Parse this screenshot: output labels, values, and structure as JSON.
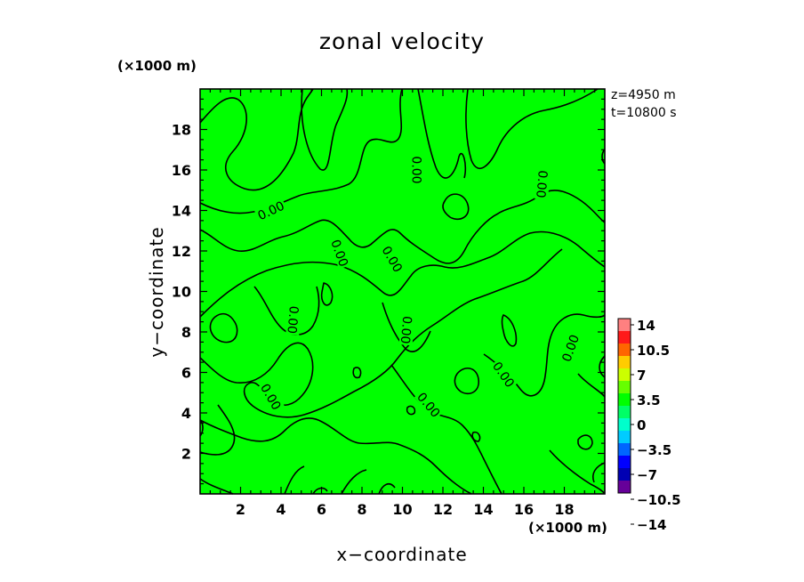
{
  "chart_data": {
    "type": "heatmap",
    "title": "zonal velocity",
    "xlabel": "x−coordinate",
    "ylabel": "y−coordinate",
    "x_unit_label": "(×1000 m)",
    "y_unit_label": "(×1000 m)",
    "annotations": [
      "z=4950 m",
      "t=10800 s"
    ],
    "xlim": [
      0,
      20
    ],
    "ylim": [
      0,
      20
    ],
    "xticks": [
      2,
      4,
      6,
      8,
      10,
      12,
      14,
      16,
      18
    ],
    "yticks": [
      2,
      4,
      6,
      8,
      10,
      12,
      14,
      16,
      18
    ],
    "field_value": 0,
    "field_color": "#00ff00",
    "contour_label": "0.00",
    "contour_labels": [
      {
        "text": "0.00",
        "x": 3.5,
        "y": 14.0
      },
      {
        "text": "0.00",
        "x": 6.9,
        "y": 11.9
      },
      {
        "text": "0.00",
        "x": 9.5,
        "y": 11.6
      },
      {
        "text": "0.00",
        "x": 10.7,
        "y": 16.0
      },
      {
        "text": "0.00",
        "x": 16.9,
        "y": 15.3
      },
      {
        "text": "0.00",
        "x": 4.6,
        "y": 8.6
      },
      {
        "text": "0.00",
        "x": 10.2,
        "y": 8.1
      },
      {
        "text": "0.00",
        "x": 3.5,
        "y": 4.8
      },
      {
        "text": "0.00",
        "x": 11.3,
        "y": 4.4
      },
      {
        "text": "0.00",
        "x": 15.0,
        "y": 5.9
      },
      {
        "text": "0.00",
        "x": 18.3,
        "y": 7.2
      }
    ],
    "colorbar": {
      "labels": [
        "14",
        "10.5",
        "7",
        "3.5",
        "0",
        "−3.5",
        "−7",
        "−10.5",
        "−14"
      ],
      "colors": [
        "#ff8080",
        "#ff1a1a",
        "#ff6600",
        "#ffcc00",
        "#ccff00",
        "#66ff00",
        "#00ff00",
        "#00ff66",
        "#00ffcc",
        "#00ccff",
        "#0066ff",
        "#0000ff",
        "#0000b3",
        "#660099"
      ]
    }
  }
}
